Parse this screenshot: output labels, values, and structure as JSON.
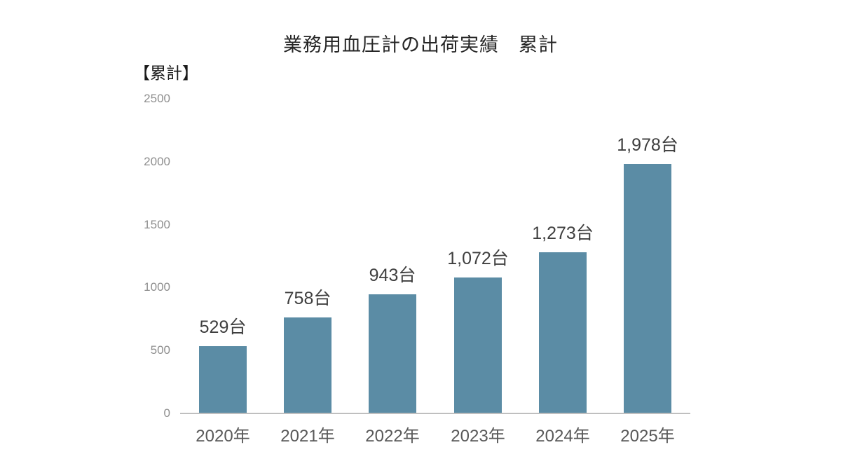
{
  "chart_data": {
    "type": "bar",
    "title": "業務用血圧計の出荷実績　累計",
    "ylabel_corner": "【累計】",
    "categories": [
      "2020年",
      "2021年",
      "2022年",
      "2023年",
      "2024年",
      "2025年"
    ],
    "values": [
      529,
      758,
      943,
      1072,
      1273,
      1978
    ],
    "value_labels": [
      "529台",
      "758台",
      "943台",
      "1,072台",
      "1,273台",
      "1,978台"
    ],
    "y_ticks": [
      0,
      500,
      1000,
      1500,
      2000,
      2500
    ],
    "ylim": [
      0,
      2500
    ],
    "grid": "off",
    "legend": "none",
    "bar_color": "#5B8CA5",
    "axis_line_color": "#bfbfbf",
    "tick_label_color": "#8e8e8e",
    "x_label_color": "#595959",
    "value_label_color": "#3f3f3f",
    "title_color": "#262626"
  }
}
